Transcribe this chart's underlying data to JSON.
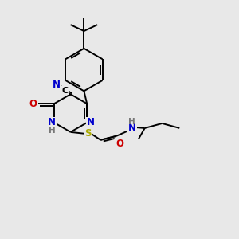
{
  "bg_color": "#e8e8e8",
  "colors": {
    "C": "#000000",
    "N": "#0000cc",
    "O": "#cc0000",
    "S": "#aaaa00",
    "H": "#777777",
    "bond": "#000000"
  },
  "bond_lw": 1.4,
  "font_size": 8.5
}
